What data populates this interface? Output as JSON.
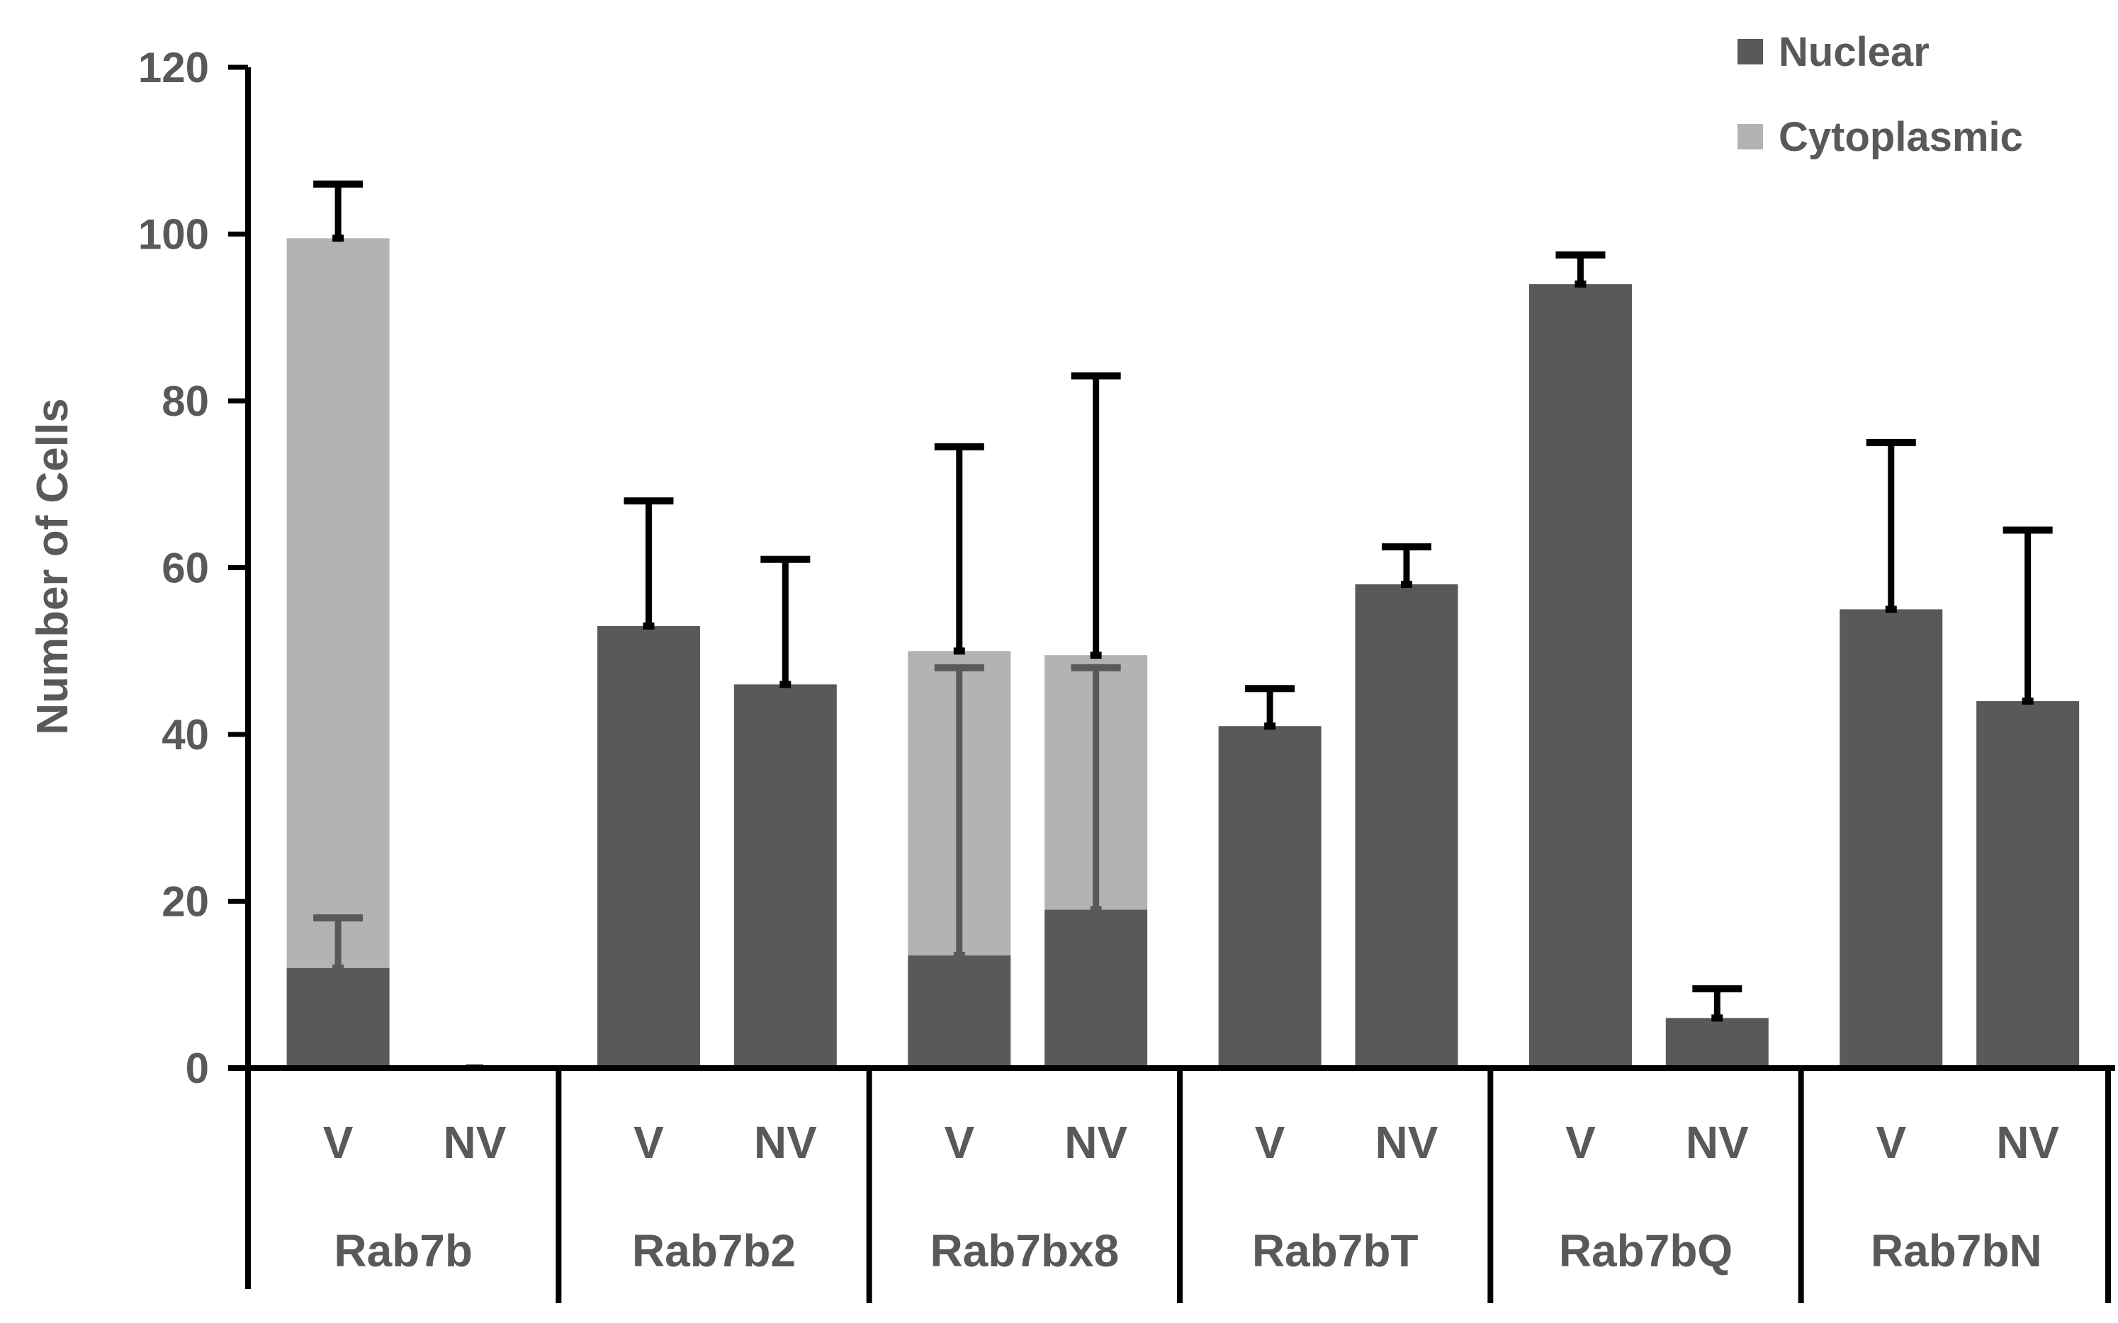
{
  "chart_data": {
    "type": "bar",
    "stacked": true,
    "title": "",
    "xlabel": "",
    "ylabel": "Number of Cells",
    "ylim": [
      0,
      120
    ],
    "yticks": [
      0,
      20,
      40,
      60,
      80,
      100,
      120
    ],
    "groups": [
      "Rab7b",
      "Rab7b2",
      "Rab7bx8",
      "Rab7bT",
      "Rab7bQ",
      "Rab7bN"
    ],
    "subcategories": [
      "V",
      "NV"
    ],
    "series": [
      {
        "name": "Nuclear",
        "color": "#595959",
        "values": [
          12,
          0,
          53,
          46,
          13.5,
          19,
          41,
          58,
          94,
          6,
          55,
          44
        ],
        "error_upper": [
          18,
          0,
          68,
          61,
          null,
          null,
          45.5,
          62.5,
          97.5,
          9.5,
          75,
          64.5
        ]
      },
      {
        "name": "Cytoplasmic",
        "color": "#b3b3b3",
        "values": [
          87.5,
          0,
          0,
          0,
          36.5,
          30.5,
          0,
          0,
          0,
          0,
          0,
          0
        ],
        "error_upper": [
          106,
          null,
          null,
          null,
          74.5,
          83,
          null,
          null,
          null,
          null,
          null,
          null
        ]
      }
    ],
    "inner_error_upper": [
      null,
      null,
      null,
      null,
      48,
      48,
      null,
      null,
      null,
      null,
      null,
      null
    ],
    "legend_position": "top-right"
  }
}
